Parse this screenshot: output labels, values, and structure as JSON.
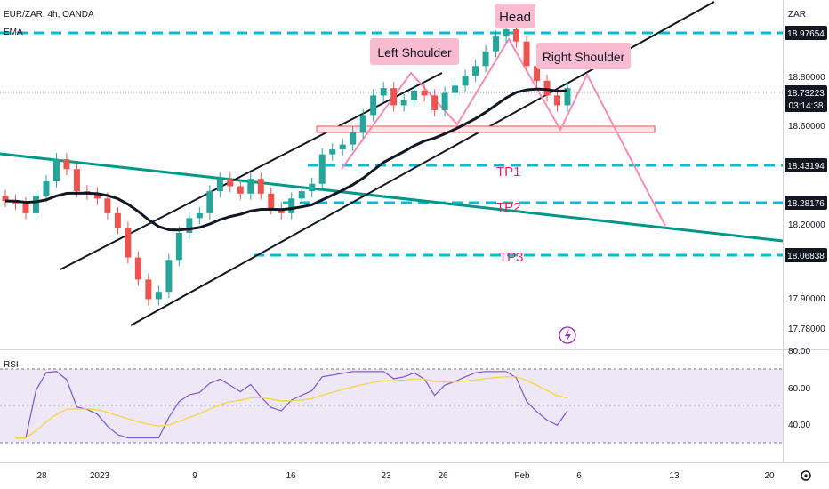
{
  "header": {
    "symbol_line": "EUR/ZAR, 4h, OANDA",
    "indicator": "EMA",
    "rsi_label": "RSI"
  },
  "price_axis": {
    "currency": "ZAR",
    "ticks": [
      "18.80000",
      "18.60000",
      "18.20000",
      "17.90000",
      "17.78000"
    ],
    "badges": {
      "top_line": "18.97654",
      "current": "18.73223",
      "countdown": "03:14:38",
      "tp1": "18.43194",
      "tp2": "18.28176",
      "tp3": "18.06838"
    }
  },
  "time_axis": [
    "28",
    "2023",
    "9",
    "16",
    "23",
    "26",
    "Feb",
    "6",
    "13",
    "20"
  ],
  "rsi_axis": [
    "80.00",
    "60.00",
    "40.00"
  ],
  "annotations": {
    "head": "Head",
    "left_shoulder": "Left Shoulder",
    "right_shoulder": "Right Shoulder",
    "tp1": "TP1",
    "tp2": "TP2",
    "tp3": "TP3"
  },
  "icons": {
    "replay": "lightning-icon",
    "settings": "gear-icon"
  },
  "colors": {
    "up": "#26a69a",
    "down": "#ef5350",
    "level_line": "#00bcd4",
    "trendline": "#009688",
    "pattern": "#f48fb1",
    "label_bg": "#f8bbd0",
    "badge": "#131722",
    "tp_text": "#e91e63",
    "rsi_line": "#7e57c2",
    "rsi_ma": "#f7d33a",
    "rsi_band": "#ede7f6"
  },
  "chart_data": {
    "type": "candlestick",
    "symbol": "EUR/ZAR",
    "timeframe": "4h",
    "levels": [
      18.97654,
      18.73223,
      18.43194,
      18.28176,
      18.06838
    ],
    "neckline_zone": [
      18.58,
      18.605
    ],
    "candles_approx_close": [
      18.27,
      18.26,
      18.22,
      18.29,
      18.35,
      18.44,
      18.4,
      18.31,
      18.3,
      18.28,
      18.22,
      18.16,
      18.04,
      17.95,
      17.87,
      17.9,
      18.03,
      18.14,
      18.2,
      18.22,
      18.31,
      18.36,
      18.33,
      18.3,
      18.36,
      18.3,
      18.24,
      18.22,
      18.28,
      18.31,
      18.34,
      18.46,
      18.48,
      18.5,
      18.55,
      18.62,
      18.7,
      18.73,
      18.66,
      18.68,
      18.72,
      18.7,
      18.64,
      18.71,
      18.74,
      18.78,
      18.82,
      18.88,
      18.94,
      18.97,
      18.92,
      18.82,
      18.76,
      18.7,
      18.66,
      18.73
    ],
    "rsi_range": [
      20,
      80
    ]
  }
}
